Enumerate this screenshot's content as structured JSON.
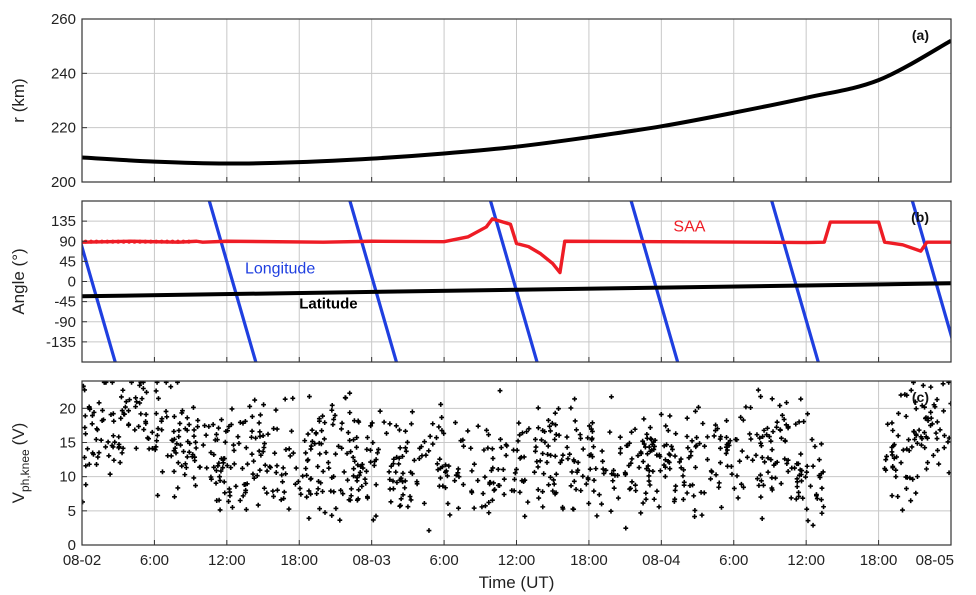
{
  "chart_data": [
    {
      "id": "a",
      "type": "line",
      "panel_label": "(a)",
      "ylabel": "r (km)",
      "ylim": [
        200,
        260
      ],
      "yticks": [
        "200",
        "220",
        "240",
        "260"
      ],
      "grid": true,
      "series": [
        {
          "color": "#000000",
          "x_hours": [
            0,
            6,
            12,
            18,
            24,
            30,
            36,
            42,
            48,
            54,
            60,
            66,
            72
          ],
          "values": [
            209,
            207.5,
            206.8,
            207.3,
            208.6,
            210.5,
            213,
            216.5,
            220.5,
            225.5,
            231,
            237.5,
            252
          ]
        }
      ]
    },
    {
      "id": "b",
      "type": "line",
      "panel_label": "(b)",
      "ylabel": "Angle (°)",
      "ylim": [
        -180,
        180
      ],
      "yticks": [
        "-135",
        "-90",
        "-45",
        "0",
        "45",
        "90",
        "135"
      ],
      "grid": true,
      "annotations": [
        {
          "text": "SAA",
          "color": "#ee1c25",
          "x_hours": 49,
          "y": 112
        },
        {
          "text": "Longitude",
          "color": "#1f3fe0",
          "x_hours": 13.5,
          "y": 18
        },
        {
          "text": "Latitude",
          "color": "#000000",
          "x_hours": 18,
          "y": -60
        }
      ],
      "series": [
        {
          "name": "SAA",
          "color": "#ee1c25",
          "x_hours": [
            0,
            4,
            8,
            9.5,
            10,
            12,
            20,
            24,
            30,
            32,
            33.5,
            34,
            35.5,
            36,
            37,
            38,
            39,
            39.6,
            40,
            48,
            56,
            60,
            61.5,
            62,
            66,
            66.5,
            68,
            69.5,
            70,
            72
          ],
          "values": [
            88,
            90,
            88,
            90,
            88,
            90,
            88,
            90,
            89,
            100,
            122,
            140,
            128,
            85,
            78,
            62,
            40,
            20,
            90,
            89,
            88,
            87,
            88,
            133,
            133,
            88,
            82,
            68,
            88,
            88
          ]
        },
        {
          "name": "Longitude",
          "color": "#1f3fe0",
          "period_hours": 11.65,
          "start_hours": -1.1,
          "y_top": 180,
          "y_bottom": -180
        },
        {
          "name": "Latitude",
          "color": "#000000",
          "x_hours": [
            0,
            72
          ],
          "values": [
            -33,
            -4
          ]
        }
      ]
    },
    {
      "id": "c",
      "type": "scatter",
      "panel_label": "(c)",
      "ylabel": "V",
      "ylabel_sub": "ph,knee",
      "ylabel_unit": "(V)",
      "ylim": [
        0,
        24
      ],
      "yticks": [
        "0",
        "5",
        "10",
        "15",
        "20"
      ],
      "grid": true,
      "gap_hours": [
        61.5,
        66.5
      ],
      "trend": {
        "x_hours": [
          0,
          3,
          6,
          9,
          12,
          18,
          24,
          30,
          33,
          36,
          42,
          48,
          54,
          58,
          60,
          64,
          66,
          68,
          72
        ],
        "values": [
          17,
          17,
          18,
          14,
          12,
          13,
          12,
          11.5,
          11,
          12,
          12,
          12,
          13,
          14,
          11,
          11,
          12,
          14,
          18
        ]
      },
      "spread": 4,
      "point_count": 1100
    }
  ],
  "xaxis": {
    "label": "Time (UT)",
    "range_hours": [
      0,
      72
    ],
    "ticks": [
      "08-02",
      "6:00",
      "12:00",
      "18:00",
      "08-03",
      "6:00",
      "12:00",
      "18:00",
      "08-04",
      "6:00",
      "12:00",
      "18:00",
      "08-05"
    ]
  }
}
